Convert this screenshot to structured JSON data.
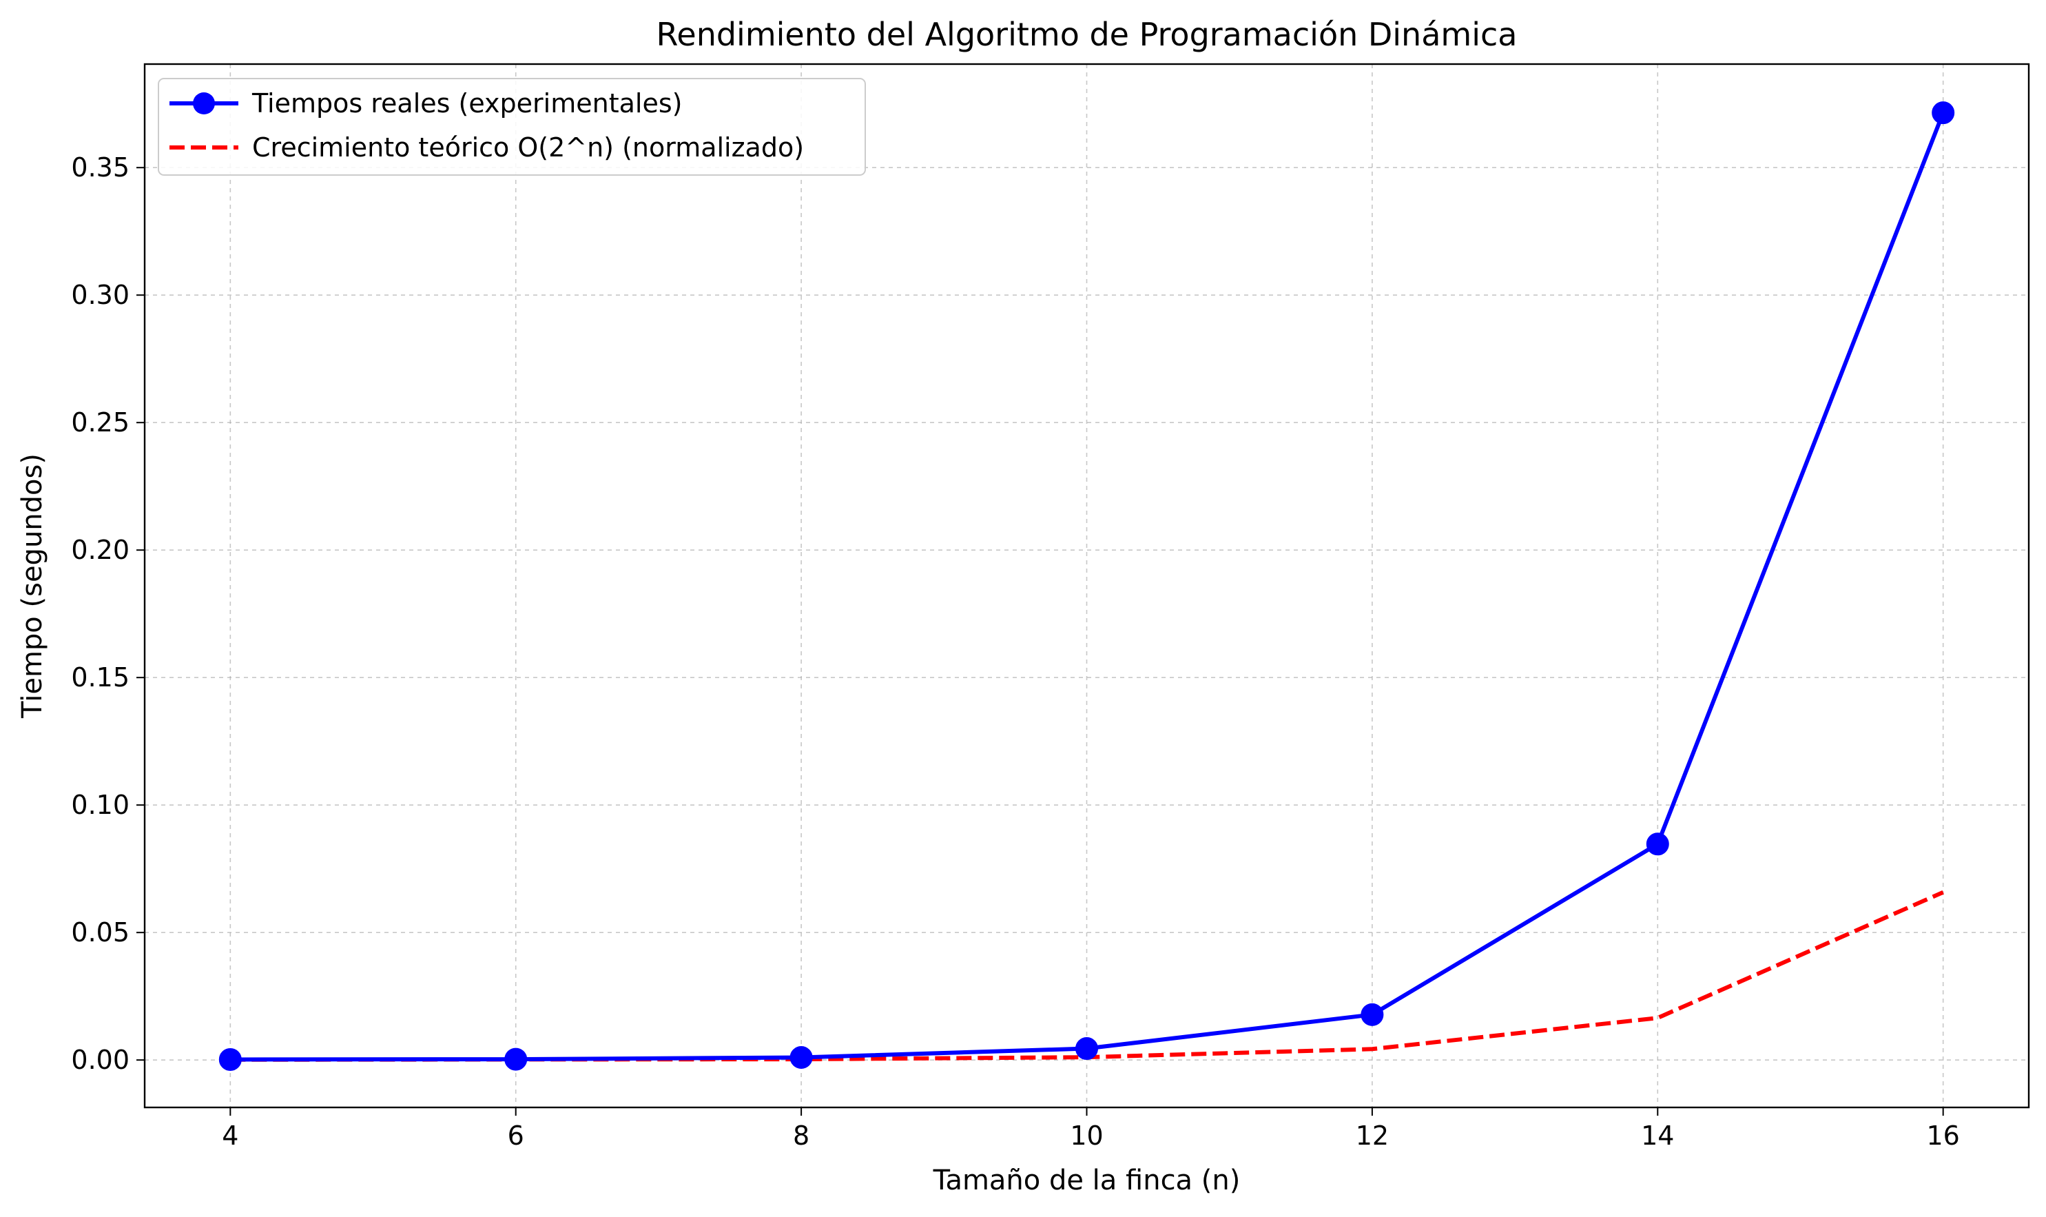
{
  "chart_data": {
    "type": "line",
    "title": "Rendimiento del Algoritmo de Programación Dinámica",
    "xlabel": "Tamaño de la finca (n)",
    "ylabel": "Tiempo (segundos)",
    "x": [
      4,
      6,
      8,
      10,
      12,
      14,
      16
    ],
    "xlim": [
      3.4,
      16.6
    ],
    "ylim": [
      -0.0186,
      0.3906
    ],
    "xticks": [
      4,
      6,
      8,
      10,
      12,
      14,
      16
    ],
    "xtick_labels": [
      "4",
      "6",
      "8",
      "10",
      "12",
      "14",
      "16"
    ],
    "yticks": [
      0,
      0.05,
      0.1,
      0.15,
      0.2,
      0.25,
      0.3,
      0.35
    ],
    "ytick_labels": [
      "0.00",
      "0.05",
      "0.10",
      "0.15",
      "0.20",
      "0.25",
      "0.30",
      "0.35"
    ],
    "grid": true,
    "legend_position": "top-left",
    "series": [
      {
        "name": "Tiempos reales (experimentales)",
        "values": [
          0.0002,
          0.0003,
          0.001,
          0.0045,
          0.0178,
          0.0847,
          0.3715
        ],
        "color": "#0000ff",
        "style": "solid",
        "marker": "circle"
      },
      {
        "name": "Crecimiento teórico O(2^n) (normalizado)",
        "values": [
          0.0001,
          0.0002,
          0.0003,
          0.0011,
          0.0043,
          0.0165,
          0.0658
        ],
        "color": "#ff0000",
        "style": "dashed",
        "marker": "none"
      }
    ]
  }
}
